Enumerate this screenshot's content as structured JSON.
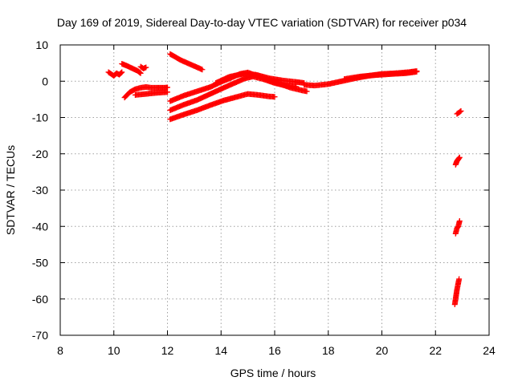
{
  "chart_data": {
    "type": "scatter",
    "title": "Day 169 of 2019, Sidereal Day-to-day VTEC variation (SDTVAR) for receiver p034",
    "xlabel": "GPS time / hours",
    "ylabel": "SDTVAR / TECUs",
    "xlim": [
      8,
      24
    ],
    "ylim": [
      -70,
      10
    ],
    "xticks": [
      8,
      10,
      12,
      14,
      16,
      18,
      20,
      22,
      24
    ],
    "yticks": [
      10,
      0,
      -10,
      -20,
      -30,
      -40,
      -50,
      -60,
      -70
    ],
    "grid": true,
    "marker": "+",
    "color": "#ff0000",
    "series": [
      {
        "segments": [
          [
            [
              9.8,
              2.5
            ],
            [
              9.9,
              2.0
            ],
            [
              10.0,
              1.5
            ],
            [
              10.1,
              2.2
            ],
            [
              10.2,
              1.8
            ],
            [
              10.3,
              2.5
            ]
          ],
          [
            [
              10.3,
              4.8
            ],
            [
              10.5,
              4.2
            ],
            [
              10.7,
              3.5
            ],
            [
              10.9,
              2.8
            ],
            [
              11.0,
              2.2
            ]
          ],
          [
            [
              10.4,
              -4.5
            ],
            [
              10.6,
              -3.0
            ],
            [
              10.8,
              -2.2
            ],
            [
              11.0,
              -1.8
            ],
            [
              11.2,
              -1.6
            ],
            [
              11.4,
              -1.8
            ],
            [
              11.6,
              -1.8
            ],
            [
              11.9,
              -1.8
            ],
            [
              12.0,
              -1.7
            ]
          ],
          [
            [
              10.8,
              -3.8
            ],
            [
              11.2,
              -3.5
            ],
            [
              11.6,
              -3.2
            ],
            [
              12.0,
              -3.0
            ]
          ],
          [
            [
              11.0,
              4.0
            ],
            [
              11.1,
              3.5
            ],
            [
              11.2,
              3.8
            ]
          ],
          [
            [
              12.1,
              7.5
            ],
            [
              12.5,
              5.8
            ],
            [
              12.9,
              4.5
            ],
            [
              13.3,
              3.2
            ]
          ],
          [
            [
              12.1,
              -5.5
            ],
            [
              12.6,
              -4.0
            ],
            [
              13.1,
              -2.8
            ],
            [
              13.6,
              -1.6
            ],
            [
              14.0,
              -0.2
            ],
            [
              14.4,
              1.0
            ],
            [
              14.7,
              2.0
            ],
            [
              15.0,
              2.4
            ],
            [
              15.3,
              1.6
            ],
            [
              15.7,
              0.6
            ],
            [
              16.1,
              -0.5
            ],
            [
              16.6,
              -1.8
            ],
            [
              17.0,
              -2.5
            ],
            [
              17.2,
              -2.8
            ]
          ],
          [
            [
              12.1,
              -8.0
            ],
            [
              12.6,
              -6.5
            ],
            [
              13.1,
              -5.2
            ],
            [
              13.6,
              -3.5
            ],
            [
              14.1,
              -1.8
            ],
            [
              14.5,
              -0.5
            ],
            [
              14.9,
              0.8
            ],
            [
              15.2,
              1.3
            ],
            [
              15.6,
              0.5
            ],
            [
              16.0,
              -0.5
            ],
            [
              16.4,
              -1.2
            ],
            [
              16.8,
              -1.5
            ]
          ],
          [
            [
              12.1,
              -10.5
            ],
            [
              12.6,
              -9.2
            ],
            [
              13.1,
              -8.0
            ],
            [
              13.6,
              -6.6
            ],
            [
              14.1,
              -5.3
            ],
            [
              14.6,
              -4.3
            ],
            [
              15.0,
              -3.5
            ],
            [
              15.4,
              -3.8
            ],
            [
              15.8,
              -4.2
            ],
            [
              16.0,
              -4.3
            ]
          ],
          [
            [
              13.8,
              -0.5
            ],
            [
              14.3,
              1.2
            ],
            [
              14.8,
              2.0
            ],
            [
              15.3,
              1.8
            ],
            [
              15.8,
              0.8
            ],
            [
              16.3,
              0.2
            ],
            [
              16.8,
              -0.2
            ],
            [
              17.1,
              -0.5
            ]
          ],
          [
            [
              17.1,
              -1.0
            ],
            [
              17.5,
              -1.2
            ],
            [
              18.0,
              -0.8
            ],
            [
              18.5,
              0.0
            ],
            [
              19.0,
              0.8
            ],
            [
              19.5,
              1.5
            ],
            [
              20.0,
              2.0
            ],
            [
              20.5,
              2.2
            ],
            [
              21.0,
              2.5
            ],
            [
              21.3,
              2.8
            ]
          ],
          [
            [
              18.6,
              0.6
            ],
            [
              19.2,
              1.3
            ],
            [
              19.8,
              1.7
            ],
            [
              20.4,
              2.0
            ],
            [
              20.9,
              2.2
            ],
            [
              21.3,
              2.6
            ]
          ],
          [
            [
              22.8,
              -9.0
            ],
            [
              22.9,
              -8.5
            ],
            [
              22.95,
              -8.2
            ]
          ],
          [
            [
              22.75,
              -23.0
            ],
            [
              22.8,
              -22.0
            ],
            [
              22.85,
              -21.5
            ],
            [
              22.9,
              -21.0
            ]
          ],
          [
            [
              22.75,
              -42.0
            ],
            [
              22.8,
              -40.5
            ],
            [
              22.85,
              -40.0
            ],
            [
              22.9,
              -38.5
            ]
          ],
          [
            [
              22.72,
              -61.5
            ],
            [
              22.76,
              -59.5
            ],
            [
              22.8,
              -57.5
            ],
            [
              22.84,
              -56.0
            ],
            [
              22.88,
              -54.5
            ]
          ]
        ]
      }
    ]
  }
}
